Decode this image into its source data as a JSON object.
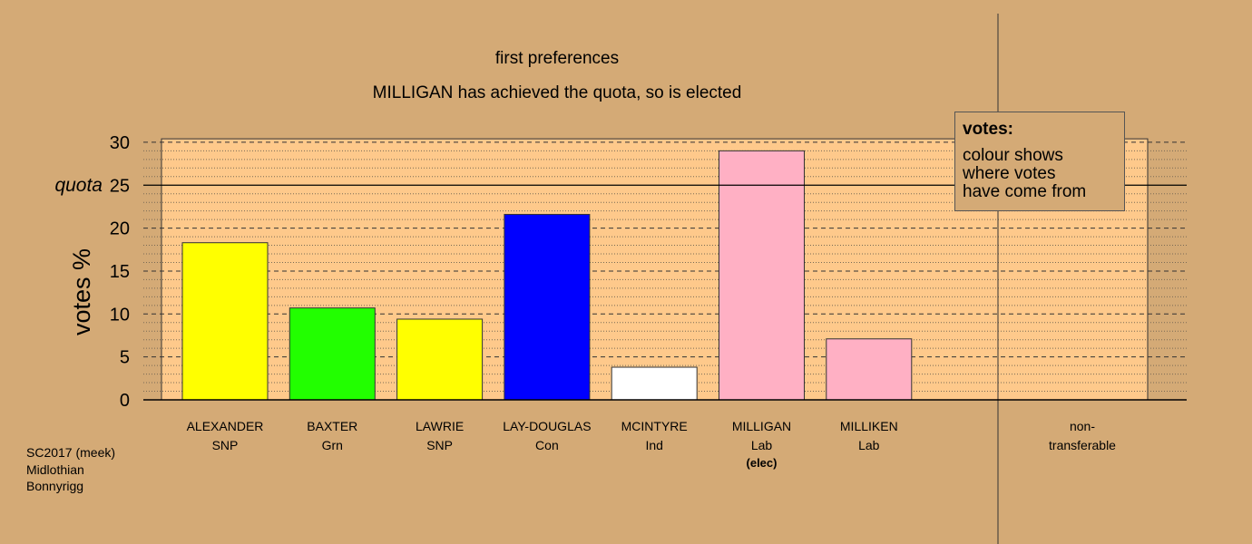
{
  "chart_data": {
    "type": "bar",
    "title": "first preferences",
    "subtitle": "MILLIGAN has achieved the quota, so is elected",
    "ylabel": "votes %",
    "ylim": [
      0,
      30
    ],
    "yticks": [
      "0",
      "5",
      "10",
      "15",
      "20",
      "25",
      "30"
    ],
    "quota": 25,
    "quota_label": "quota",
    "grid": true,
    "categories": [
      {
        "name": "ALEXANDER",
        "party": "SNP",
        "note": "",
        "value": 18.3,
        "color": "#ffff00"
      },
      {
        "name": "BAXTER",
        "party": "Grn",
        "note": "",
        "value": 10.7,
        "color": "#22ff00"
      },
      {
        "name": "LAWRIE",
        "party": "SNP",
        "note": "",
        "value": 9.4,
        "color": "#ffff00"
      },
      {
        "name": "LAY-DOUGLAS",
        "party": "Con",
        "note": "",
        "value": 21.6,
        "color": "#0000ff"
      },
      {
        "name": "MCINTYRE",
        "party": "Ind",
        "note": "",
        "value": 3.8,
        "color": "#ffffff"
      },
      {
        "name": "MILLIGAN",
        "party": "Lab",
        "note": "(elec)",
        "value": 29.0,
        "color": "#ffb0c4"
      },
      {
        "name": "MILLIKEN",
        "party": "Lab",
        "note": "",
        "value": 7.1,
        "color": "#ffb0c4"
      }
    ],
    "nontransferable": {
      "line1": "non-",
      "line2": "transferable",
      "value": 0
    }
  },
  "legend": {
    "title": "votes:",
    "lines": [
      "colour shows",
      "where votes",
      "have come from"
    ]
  },
  "footnote": {
    "lines": [
      "SC2017 (meek)",
      "Midlothian",
      "Bonnyrigg"
    ]
  },
  "colors": {
    "background": "#d4aa76",
    "plot_band": "#fec98b"
  }
}
